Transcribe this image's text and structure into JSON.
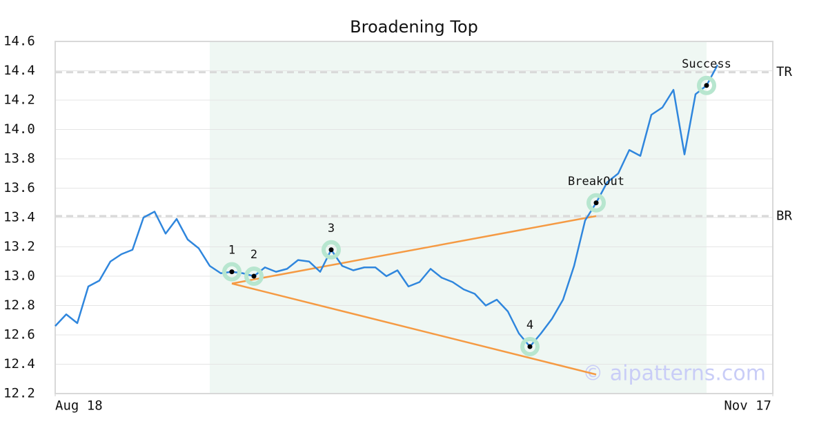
{
  "chart_data": {
    "type": "line",
    "title": "Broadening Top",
    "x": [
      0,
      1,
      2,
      3,
      4,
      5,
      6,
      7,
      8,
      9,
      10,
      11,
      12,
      13,
      14,
      15,
      16,
      17,
      18,
      19,
      20,
      21,
      22,
      23,
      24,
      25,
      26,
      27,
      28,
      29,
      30,
      31,
      32,
      33,
      34,
      35,
      36,
      37,
      38,
      39,
      40,
      41,
      42,
      43,
      44,
      45,
      46,
      47,
      48,
      49,
      50,
      51,
      52,
      53,
      54,
      55,
      56,
      57,
      58,
      59,
      60
    ],
    "series": [
      {
        "color": "#2f86dd",
        "values": [
          12.66,
          12.74,
          12.68,
          12.93,
          12.97,
          13.1,
          13.15,
          13.18,
          13.4,
          13.44,
          13.29,
          13.39,
          13.25,
          13.19,
          13.07,
          13.02,
          13.03,
          13.02,
          13.0,
          13.06,
          13.03,
          13.05,
          13.11,
          13.1,
          13.03,
          13.18,
          13.07,
          13.04,
          13.06,
          13.06,
          13.0,
          13.04,
          12.93,
          12.96,
          13.05,
          12.99,
          12.96,
          12.91,
          12.88,
          12.8,
          12.84,
          12.76,
          12.61,
          12.52,
          12.61,
          12.71,
          12.84,
          13.07,
          13.38,
          13.5,
          13.64,
          13.7,
          13.86,
          13.82,
          14.1,
          14.15,
          14.27,
          13.83,
          14.24,
          14.3,
          14.44
        ]
      }
    ],
    "xlim": [
      0,
      65
    ],
    "xticks": [
      {
        "value": 0,
        "label": "Aug 18"
      },
      {
        "value": 65,
        "label": "Nov 17"
      }
    ],
    "ylim": [
      12.2,
      14.6
    ],
    "yticks": [
      12.2,
      12.4,
      12.6,
      12.8,
      {
        "value": 13,
        "label": "13.0"
      },
      13.2,
      13.4,
      13.6,
      13.8,
      {
        "value": 14,
        "label": "14.0"
      },
      14.2,
      14.4,
      14.6
    ],
    "grid": true,
    "highlight_x": [
      14,
      59
    ],
    "levels": [
      {
        "label": "TR",
        "value": 14.39
      },
      {
        "label": "BR",
        "value": 13.41
      }
    ],
    "trendlines": [
      {
        "color": "#f59a43",
        "x": [
          16,
          49
        ],
        "y": [
          12.95,
          13.41
        ]
      },
      {
        "color": "#f59a43",
        "x": [
          16,
          49
        ],
        "y": [
          12.95,
          12.33
        ]
      }
    ],
    "annotations": [
      {
        "label": "1",
        "x": 16
      },
      {
        "label": "2",
        "x": 18
      },
      {
        "label": "3",
        "x": 25
      },
      {
        "label": "4",
        "x": 43
      },
      {
        "label": "BreakOut",
        "x": 49
      },
      {
        "label": "Success",
        "x": 59
      }
    ],
    "watermark": "© aipatterns.com"
  }
}
